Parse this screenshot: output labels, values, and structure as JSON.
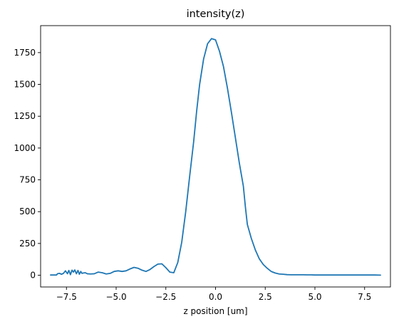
{
  "chart_data": {
    "type": "line",
    "title": "intensity(z)",
    "xlabel": "z position [um]",
    "ylabel": "",
    "xlim": [
      -8.8,
      8.8
    ],
    "ylim": [
      -92,
      1962
    ],
    "x_ticks": [
      -7.5,
      -5.0,
      -2.5,
      0.0,
      2.5,
      5.0,
      7.5
    ],
    "x_tick_labels": [
      "−7.5",
      "−5.0",
      "−2.5",
      "0.0",
      "2.5",
      "5.0",
      "7.5"
    ],
    "y_ticks": [
      0,
      250,
      500,
      750,
      1000,
      1250,
      1500,
      1750
    ],
    "y_tick_labels": [
      "0",
      "250",
      "500",
      "750",
      "1000",
      "1250",
      "1500",
      "1750"
    ],
    "grid": false,
    "line_color": "#1f77b4",
    "series": [
      {
        "x": [
          -8.3,
          -8.0,
          -7.95,
          -7.85,
          -7.75,
          -7.65,
          -7.55,
          -7.45,
          -7.38,
          -7.3,
          -7.22,
          -7.15,
          -7.08,
          -7.0,
          -6.92,
          -6.85,
          -6.78,
          -6.72,
          -6.65,
          -6.55,
          -6.45,
          -6.3,
          -6.1,
          -5.9,
          -5.7,
          -5.5,
          -5.3,
          -5.1,
          -4.9,
          -4.7,
          -4.5,
          -4.3,
          -4.1,
          -3.9,
          -3.7,
          -3.5,
          -3.3,
          -3.1,
          -2.9,
          -2.7,
          -2.5,
          -2.3,
          -2.1,
          -1.9,
          -1.7,
          -1.5,
          -1.3,
          -1.1,
          -0.95,
          -0.8,
          -0.6,
          -0.4,
          -0.2,
          0.0,
          0.2,
          0.4,
          0.6,
          0.8,
          1.0,
          1.2,
          1.4,
          1.5,
          1.6,
          1.8,
          2.0,
          2.2,
          2.4,
          2.6,
          2.8,
          3.0,
          3.2,
          3.4,
          3.6,
          3.8,
          4.0,
          4.2,
          4.4,
          4.6,
          4.8,
          5.0,
          5.2,
          5.4,
          5.6,
          5.8,
          6.0,
          6.4,
          6.8,
          7.2,
          7.6,
          8.0,
          8.3
        ],
        "y": [
          2,
          2,
          12,
          15,
          8,
          15,
          35,
          12,
          38,
          5,
          40,
          25,
          42,
          12,
          38,
          8,
          30,
          15,
          18,
          20,
          12,
          10,
          12,
          25,
          20,
          10,
          15,
          30,
          35,
          30,
          35,
          50,
          62,
          55,
          40,
          30,
          45,
          68,
          88,
          90,
          60,
          25,
          20,
          100,
          260,
          500,
          780,
          1050,
          1290,
          1500,
          1700,
          1820,
          1860,
          1850,
          1760,
          1640,
          1470,
          1280,
          1080,
          880,
          700,
          540,
          400,
          290,
          200,
          130,
          85,
          55,
          30,
          18,
          10,
          8,
          5,
          4,
          4,
          4,
          4,
          3,
          3,
          2,
          2,
          2,
          2,
          2,
          2,
          2,
          2,
          2,
          2,
          2,
          1
        ]
      }
    ]
  }
}
